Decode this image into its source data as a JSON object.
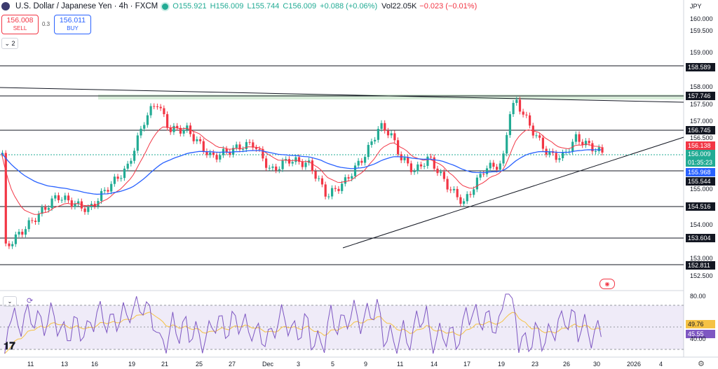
{
  "header": {
    "title": "U.S. Dollar / Japanese Yen · 4h · FXCM",
    "open": "O155.921",
    "high": "H156.009",
    "low": "L155.744",
    "close": "C156.009",
    "change": "+0.088 (+0.06%)",
    "volume": "Vol22.05K",
    "vol_change": "−0.023 (−0.01%)"
  },
  "trade": {
    "sell_price": "156.008",
    "sell_label": "SELL",
    "spread": "0.3",
    "buy_price": "156.011",
    "buy_label": "BUY"
  },
  "indicators_collapse": "2",
  "currency": "JPY",
  "price_axis": [
    "160.000",
    "159.500",
    "159.000",
    "158.000",
    "157.500",
    "157.000",
    "156.500",
    "155.000",
    "154.000",
    "153.000",
    "152.500"
  ],
  "price_tags": [
    {
      "value": "158.589",
      "color": "#131722"
    },
    {
      "value": "157.746",
      "color": "#131722"
    },
    {
      "value": "156.745",
      "color": "#131722"
    },
    {
      "value": "156.138",
      "color": "#f23645"
    },
    {
      "value": "156.009",
      "color": "#22ab94"
    },
    {
      "value": "01:35:23",
      "color": "#22ab94"
    },
    {
      "value": "155.968",
      "color": "#2962ff"
    },
    {
      "value": "155.544",
      "color": "#131722"
    },
    {
      "value": "154.516",
      "color": "#131722"
    },
    {
      "value": "153.604",
      "color": "#131722"
    },
    {
      "value": "152.811",
      "color": "#131722"
    }
  ],
  "rsi": {
    "axis": [
      "80.00",
      "40.00"
    ],
    "rsi_value": "45.55",
    "ma_value": "49.76"
  },
  "dates": [
    "11",
    "13",
    "16",
    "19",
    "21",
    "25",
    "27",
    "Dec",
    "3",
    "5",
    "9",
    "11",
    "14",
    "17",
    "19",
    "23",
    "26",
    "30",
    "2026",
    "4"
  ],
  "colors": {
    "up": "#22ab94",
    "down": "#f23645",
    "ma_fast": "#f23645",
    "ma_slow": "#2962ff",
    "rsi": "#7e57c2",
    "rsi_ma": "#f5c244"
  }
}
